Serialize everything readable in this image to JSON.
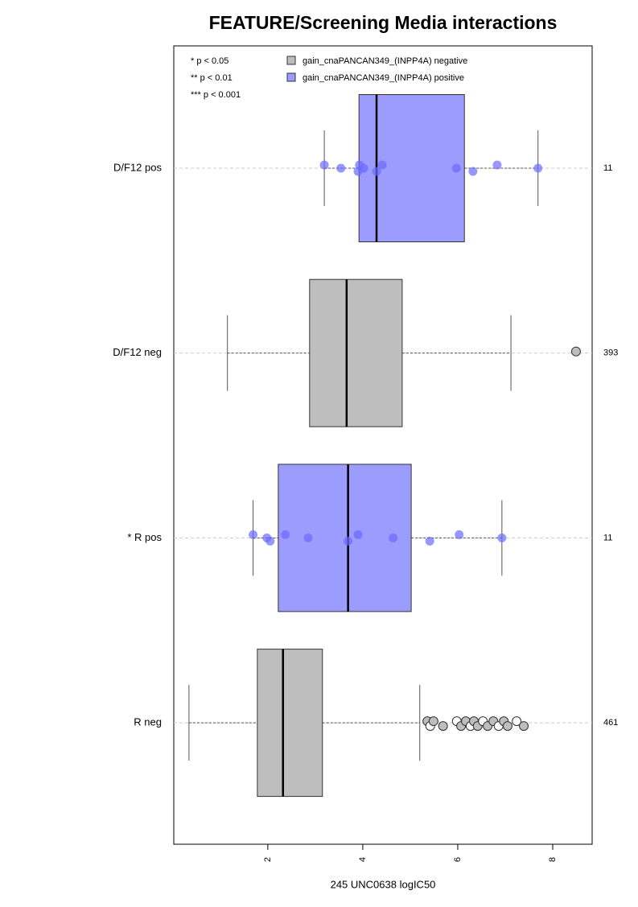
{
  "chart_data": {
    "type": "boxplot",
    "orientation": "horizontal",
    "title": "FEATURE/Screening Media interactions",
    "x_label": "245 UNC0638 logIC50",
    "xlim": [
      0.02,
      8.83
    ],
    "xticks": [
      2,
      4,
      6,
      8
    ],
    "notes": [
      "* p < 0.05",
      "** p < 0.01",
      "*** p < 0.001"
    ],
    "series": [
      {
        "name": "gain_cnaPANCAN349_(INPP4A) negative",
        "color": "#bebebe"
      },
      {
        "name": "gain_cnaPANCAN349_(INPP4A) positive",
        "color": "#9c9cff"
      }
    ],
    "categories": [
      "D/F12 pos",
      "D/F12 neg",
      "* R pos",
      "R neg"
    ],
    "boxes": [
      {
        "color": "#9c9cff",
        "point_color": "#6b6bff",
        "n": 11,
        "whisker_low": 3.19,
        "q1": 3.92,
        "median": 4.29,
        "q3": 6.14,
        "whisker_high": 7.69,
        "points": [
          3.19,
          3.54,
          3.9,
          3.93,
          4.02,
          4.29,
          4.41,
          5.97,
          6.32,
          6.83,
          7.69
        ],
        "outliers": []
      },
      {
        "color": "#bebebe",
        "point_color": "#bebebe",
        "n": 393,
        "whisker_low": 1.15,
        "q1": 2.88,
        "median": 3.66,
        "q3": 4.83,
        "whisker_high": 7.12,
        "points": [],
        "outliers": [
          8.49
        ]
      },
      {
        "color": "#9c9cff",
        "point_color": "#6b6bff",
        "n": 11,
        "whisker_low": 1.69,
        "q1": 2.22,
        "median": 3.69,
        "q3": 5.02,
        "whisker_high": 6.93,
        "points": [
          1.69,
          1.98,
          2.05,
          2.37,
          2.85,
          3.69,
          3.9,
          4.64,
          5.41,
          6.03,
          6.93
        ],
        "outliers": []
      },
      {
        "color": "#bebebe",
        "point_color": "#bebebe",
        "n": 461,
        "whisker_low": 0.34,
        "q1": 1.78,
        "median": 2.32,
        "q3": 3.15,
        "whisker_high": 5.2,
        "points": [],
        "outliers": [
          5.36,
          5.42,
          5.49,
          5.69,
          5.98,
          6.07,
          6.17,
          6.27,
          6.34,
          6.42,
          6.53,
          6.63,
          6.75,
          6.86,
          6.97,
          7.05,
          7.24,
          7.39
        ]
      }
    ]
  }
}
